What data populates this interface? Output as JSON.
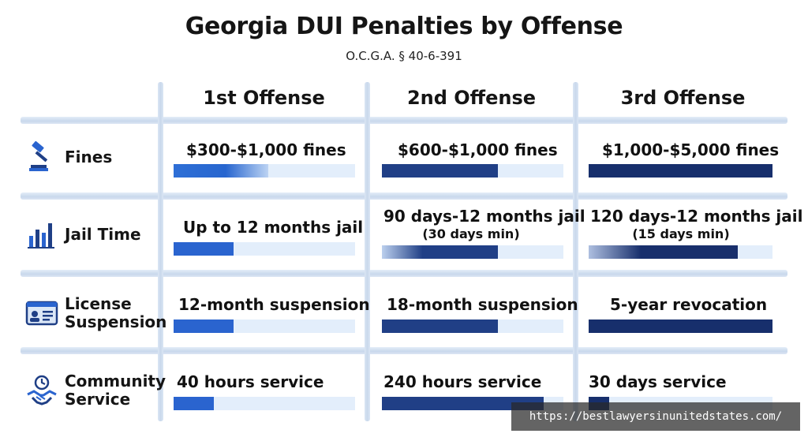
{
  "chart_data": {
    "type": "table",
    "title": "Georgia DUI Penalties by Offense",
    "subtitle": "O.C.G.A. § 40-6-391",
    "columns": [
      "1st Offense",
      "2nd Offense",
      "3rd Offense"
    ],
    "rows": [
      {
        "label": "Fines",
        "icon": "gavel-icon",
        "cells": [
          {
            "text": "$300-$1,000 fines",
            "sub": "",
            "level": 0.52
          },
          {
            "text": "$600-$1,000 fines",
            "sub": "",
            "level": 0.64
          },
          {
            "text": "$1,000-$5,000 fines",
            "sub": "",
            "level": 1.0
          }
        ]
      },
      {
        "label": "Jail Time",
        "icon": "bar-chart-icon",
        "cells": [
          {
            "text": "Up to 12 months jail",
            "sub": "",
            "level": 0.33
          },
          {
            "text": "90 days-12 months jail",
            "sub": "(30 days min)",
            "level": 0.64
          },
          {
            "text": "120 days-12 months jail",
            "sub": "(15 days min)",
            "level": 0.81
          }
        ]
      },
      {
        "label": "License Suspension",
        "icon": "id-card-icon",
        "cells": [
          {
            "text": "12-month suspension",
            "sub": "",
            "level": 0.33
          },
          {
            "text": "18-month suspension",
            "sub": "",
            "level": 0.64
          },
          {
            "text": "5-year revocation",
            "sub": "",
            "level": 1.0
          }
        ]
      },
      {
        "label": "Community Service",
        "icon": "handshake-clock-icon",
        "cells": [
          {
            "text": "40 hours service",
            "sub": "",
            "level": 0.22
          },
          {
            "text": "240 hours service",
            "sub": "",
            "level": 0.89
          },
          {
            "text": "30 days service",
            "sub": "",
            "level": 0.11
          }
        ]
      }
    ]
  },
  "colors": {
    "band": "#c9d8ec",
    "track": "#e3eefb",
    "first": "#2a64cf",
    "second": "#203f86",
    "third": "#172f6c"
  },
  "watermark": "https://bestlawyersinunitedstates.com/"
}
